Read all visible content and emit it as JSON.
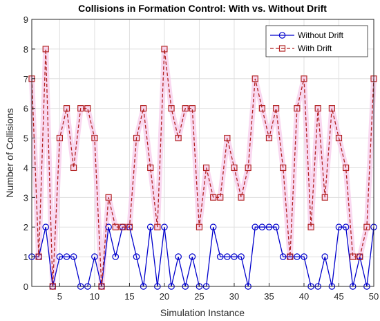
{
  "chart_data": {
    "type": "line",
    "title": "Collisions in Formation Control: With vs. Without Drift",
    "xlabel": "Simulation Instance",
    "ylabel": "Number of Collisions",
    "xlim": [
      1,
      50
    ],
    "ylim": [
      0,
      9
    ],
    "xticks": [
      5,
      10,
      15,
      20,
      25,
      30,
      35,
      40,
      45,
      50
    ],
    "yticks": [
      0,
      1,
      2,
      3,
      4,
      5,
      6,
      7,
      8,
      9
    ],
    "grid": true,
    "legend_position": "top-right",
    "x": [
      1,
      2,
      3,
      4,
      5,
      6,
      7,
      8,
      9,
      10,
      11,
      12,
      13,
      14,
      15,
      16,
      17,
      18,
      19,
      20,
      21,
      22,
      23,
      24,
      25,
      26,
      27,
      28,
      29,
      30,
      31,
      32,
      33,
      34,
      35,
      36,
      37,
      38,
      39,
      40,
      41,
      42,
      43,
      44,
      45,
      46,
      47,
      48,
      49,
      50
    ],
    "series": [
      {
        "name": "Without Drift",
        "color": "#0000cc",
        "marker": "circle",
        "line_style": "solid",
        "values": [
          1,
          1,
          2,
          0,
          1,
          1,
          1,
          0,
          0,
          1,
          0,
          2,
          1,
          2,
          2,
          1,
          0,
          2,
          0,
          2,
          0,
          1,
          0,
          1,
          0,
          0,
          2,
          1,
          1,
          1,
          1,
          0,
          2,
          2,
          2,
          2,
          1,
          1,
          1,
          1,
          0,
          0,
          1,
          0,
          2,
          2,
          0,
          1,
          0,
          2
        ]
      },
      {
        "name": "With Drift",
        "color": "#b22222",
        "marker": "square",
        "line_style": "dashed",
        "values": [
          7,
          1,
          8,
          0,
          5,
          6,
          4,
          6,
          6,
          5,
          0,
          3,
          2,
          2,
          2,
          5,
          6,
          4,
          2,
          8,
          6,
          5,
          6,
          6,
          2,
          4,
          3,
          3,
          5,
          4,
          3,
          4,
          7,
          6,
          5,
          6,
          4,
          1,
          6,
          7,
          2,
          6,
          3,
          6,
          5,
          4,
          1,
          1,
          2,
          7
        ]
      }
    ]
  }
}
